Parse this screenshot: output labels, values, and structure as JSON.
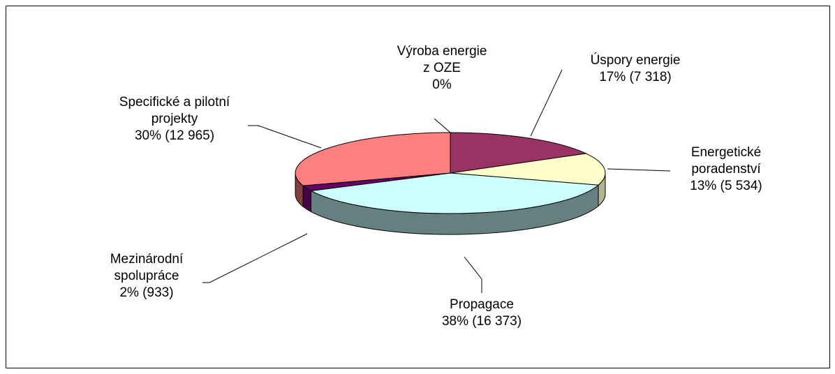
{
  "chart_data": {
    "type": "pie3d",
    "categories": [
      "Výroba energie\nz OZE",
      "Úspory energie",
      "Energetické\nporadenství",
      "Propagace",
      "Mezinárodní\nspolupráce",
      "Specifické a pilotní\nprojekty"
    ],
    "values": [
      0,
      7318,
      5534,
      16373,
      933,
      12965
    ],
    "value_labels": [
      "0%",
      "17% (7 318)",
      "13% (5 534)",
      "38% (16 373)",
      "2% (933)",
      "30% (12 965)"
    ],
    "colors": [
      "#9999ff",
      "#993366",
      "#ffffcc",
      "#ccffff",
      "#660066",
      "#ff8080"
    ],
    "side_colors": [
      "#6b6bb3",
      "#6b2447",
      "#b3b38f",
      "#668080",
      "#470047",
      "#804040"
    ]
  }
}
